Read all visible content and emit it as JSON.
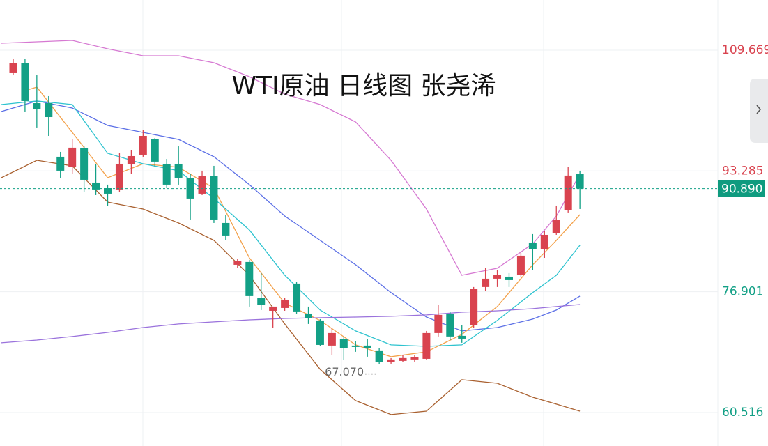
{
  "chart_data": {
    "type": "candlestick",
    "title": "WTI原油 日线图 张尧浠",
    "up_color": "#d9434f",
    "down_color": "#13a086",
    "open": [
      106.55,
      107.96,
      102.48,
      102.48,
      95.21,
      93.79,
      96.34,
      91.71,
      90.95,
      90.77,
      94.26,
      95.49,
      97.57,
      94.26,
      94.26,
      92.37,
      90.2,
      92.56,
      86.23,
      80.56,
      80.94,
      76.02,
      74.32,
      74.7,
      78.01,
      73.94,
      73.0,
      69.6,
      70.45,
      69.6,
      69.6,
      68.94,
      67.33,
      67.52,
      67.71,
      67.8,
      71.3,
      73.94,
      70.92,
      72.34,
      77.54,
      78.67,
      78.95,
      79.14,
      83.58,
      82.64,
      84.81,
      87.93,
      92.84
    ],
    "high": [
      108.44,
      108.44,
      106.26,
      103.43,
      95.87,
      97.57,
      96.62,
      94.26,
      91.43,
      95.68,
      96.15,
      98.8,
      97.76,
      94.92,
      96.62,
      92.84,
      93.32,
      93.98,
      87.36,
      81.32,
      81.22,
      79.43,
      74.89,
      76.02,
      78.2,
      74.89,
      73.19,
      72.05,
      70.83,
      70.16,
      70.45,
      69.22,
      67.9,
      68.27,
      68.27,
      71.58,
      75.08,
      74.13,
      72.34,
      77.54,
      80.09,
      79.8,
      79.43,
      82.17,
      84.72,
      85.1,
      88.59,
      93.79,
      93.32
    ],
    "low": [
      106.26,
      101.35,
      99.18,
      98.04,
      92.37,
      92.84,
      90.48,
      90.01,
      88.59,
      90.48,
      92.84,
      95.21,
      93.79,
      90.95,
      91.43,
      86.7,
      90.01,
      86.23,
      83.87,
      80.09,
      74.89,
      74.42,
      72.05,
      74.32,
      73.94,
      72.53,
      69.5,
      68.27,
      67.61,
      68.75,
      68.09,
      67.07,
      67.14,
      67.33,
      67.33,
      67.71,
      70.83,
      70.35,
      69.98,
      72.05,
      76.97,
      77.54,
      77.54,
      78.86,
      79.8,
      81.5,
      84.62,
      87.65,
      88.12
    ],
    "close": [
      107.96,
      102.77,
      101.63,
      100.59,
      93.32,
      96.44,
      92.09,
      90.77,
      90.2,
      94.26,
      95.3,
      98.04,
      94.55,
      91.43,
      92.37,
      89.54,
      92.56,
      86.7,
      84.53,
      81.03,
      76.31,
      75.08,
      74.89,
      75.83,
      74.23,
      73.28,
      69.69,
      71.3,
      69.22,
      69.41,
      69.22,
      67.33,
      67.71,
      67.9,
      67.99,
      71.3,
      73.76,
      70.83,
      70.54,
      77.25,
      78.67,
      79.14,
      78.48,
      81.79,
      82.64,
      84.62,
      86.61,
      92.66,
      90.89
    ],
    "overlays": [
      {
        "color": "#d679d2",
        "x": [
          -1,
          2,
          5,
          8,
          11,
          14,
          17,
          20,
          23,
          26,
          29,
          32,
          35,
          38,
          41,
          44,
          46,
          48
        ],
        "values": [
          110.61,
          110.8,
          110.99,
          109.85,
          108.91,
          108.91,
          107.96,
          106.07,
          103.71,
          102.29,
          99.93,
          94.73,
          88.12,
          79.14,
          80.09,
          83.39,
          87.17,
          92.84
        ]
      },
      {
        "color": "#5b6fe6",
        "x": [
          -1,
          2,
          5,
          8,
          11,
          14,
          17,
          20,
          23,
          26,
          29,
          32,
          35,
          38,
          41,
          44,
          46,
          48
        ],
        "values": [
          101.35,
          102.77,
          101.82,
          99.46,
          98.51,
          97.57,
          95.21,
          91.43,
          87.17,
          83.87,
          80.56,
          76.78,
          73.47,
          71.58,
          72.05,
          73.19,
          74.42,
          76.31
        ]
      },
      {
        "color": "#a9602f",
        "x": [
          -1,
          2,
          5,
          8,
          11,
          14,
          17,
          20,
          23,
          26,
          29,
          32,
          35,
          38,
          41,
          44,
          46,
          48
        ],
        "values": [
          92.37,
          94.73,
          93.98,
          89.06,
          88.12,
          86.23,
          83.87,
          79.14,
          72.53,
          66.38,
          62.13,
          60.24,
          60.71,
          64.97,
          64.49,
          62.6,
          61.66,
          60.71
        ]
      },
      {
        "color": "#f3a14a",
        "x": [
          1,
          2,
          5,
          8,
          11,
          14,
          17,
          20,
          23,
          26,
          29,
          32,
          35,
          38,
          41,
          44,
          46,
          48
        ],
        "values": [
          104.18,
          104.66,
          98.51,
          92.37,
          94.26,
          93.79,
          90.95,
          81.5,
          75.36,
          73.0,
          69.69,
          68.09,
          68.75,
          71.11,
          74.89,
          80.56,
          83.87,
          87.36
        ]
      },
      {
        "color": "#2ec3cf",
        "x": [
          -1,
          2,
          5,
          8,
          11,
          14,
          17,
          20,
          23,
          26,
          29,
          32,
          35,
          38,
          41,
          44,
          46,
          48
        ],
        "values": [
          102.29,
          102.77,
          102.29,
          95.68,
          94.26,
          93.32,
          89.54,
          85.28,
          79.14,
          74.42,
          71.58,
          69.69,
          69.5,
          69.69,
          73.0,
          76.78,
          79.14,
          83.21
        ]
      },
      {
        "color": "#9a72dc",
        "x": [
          -1,
          2,
          5,
          8,
          11,
          14,
          17,
          20,
          23,
          26,
          29,
          32,
          35,
          38,
          41,
          44,
          46,
          48
        ],
        "values": [
          69.98,
          70.35,
          70.83,
          71.39,
          72.05,
          72.53,
          72.81,
          73.09,
          73.28,
          73.38,
          73.47,
          73.57,
          73.76,
          74.13,
          74.32,
          74.61,
          74.89,
          75.17
        ]
      }
    ],
    "annotations": [
      {
        "text": "67.070"
      }
    ],
    "current_price": {
      "value": 90.89,
      "label": "90.890"
    },
    "xlim": [
      -1.12,
      59.68
    ],
    "ylim": [
      55.98,
      116.47
    ],
    "yticks": [
      60.516,
      76.901,
      93.285,
      109.669
    ],
    "grid": true
  }
}
